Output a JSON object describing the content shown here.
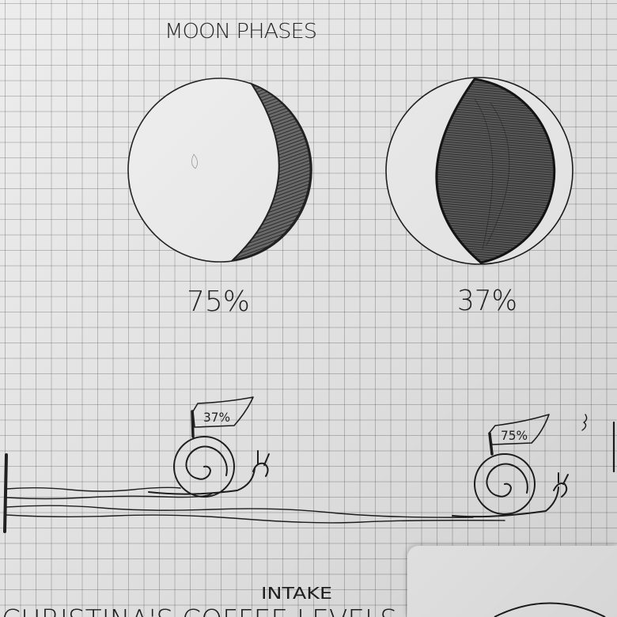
{
  "heading": "MOON PHASES",
  "moons": [
    {
      "label": "75%"
    },
    {
      "label": "37%"
    }
  ],
  "snail_flags": [
    {
      "label": "37%"
    },
    {
      "label": "75%"
    }
  ],
  "bottom": {
    "word_above": "INTAKE",
    "cut_off_line": "CHRISTINA'S COFFEE LEVELS"
  },
  "colors": {
    "paper": "#ececec",
    "ink": "#1e1e1e",
    "shading": "#555555"
  }
}
